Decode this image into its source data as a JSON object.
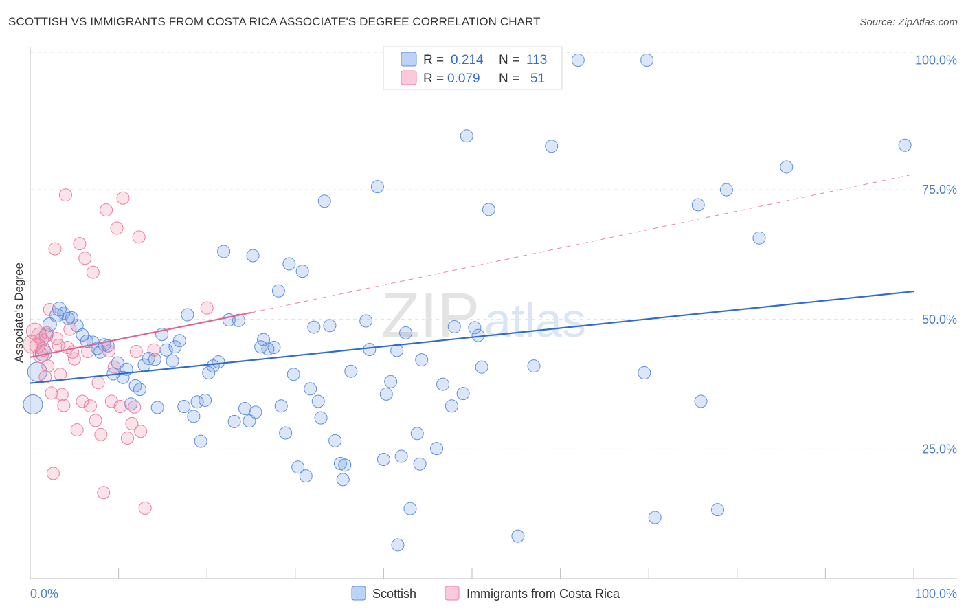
{
  "title": "SCOTTISH VS IMMIGRANTS FROM COSTA RICA ASSOCIATE'S DEGREE CORRELATION CHART",
  "source": "Source: ZipAtlas.com",
  "watermark": {
    "zip": "ZIP",
    "atlas": "atlas"
  },
  "legend_top": {
    "row1": {
      "r_label": "R =",
      "r_value": "0.214",
      "n_label": "N =",
      "n_value": "113"
    },
    "row2": {
      "r_label": "R =",
      "r_value": "0.079",
      "n_label": "N =",
      "n_value": "51"
    }
  },
  "legend_bottom": {
    "s1": "Scottish",
    "s2": "Immigrants from Costa Rica"
  },
  "chart_data": {
    "type": "scatter",
    "title": "SCOTTISH VS IMMIGRANTS FROM COSTA RICA ASSOCIATE'S DEGREE CORRELATION CHART",
    "xlabel": "",
    "ylabel": "Associate's Degree",
    "xlim": [
      0,
      100
    ],
    "ylim": [
      0,
      101
    ],
    "x_tick_labels": [
      "0.0%",
      "100.0%"
    ],
    "y_ticks": [
      25,
      50,
      75,
      100
    ],
    "y_tick_labels": [
      "25.0%",
      "50.0%",
      "75.0%",
      "100.0%"
    ],
    "grid": "horizontal-dashed",
    "colors": {
      "scottish": "#5b8fe0",
      "costa_rica": "#ee7ea0",
      "trend_blue": "#2f6bd2",
      "trend_pink": "#e2648f"
    },
    "series": [
      {
        "name": "Scottish",
        "R": 0.214,
        "N": 113,
        "trend": {
          "x0": 0,
          "y0": 37.7,
          "x1": 100,
          "y1": 55.4
        },
        "points": [
          [
            0.3,
            33.6,
            14
          ],
          [
            0.8,
            39.9,
            14
          ],
          [
            1.5,
            43.5,
            12
          ],
          [
            1.8,
            47.0,
            10
          ],
          [
            2.2,
            49.0,
            10
          ],
          [
            3.0,
            50.8,
            10
          ],
          [
            3.3,
            52.0,
            10
          ],
          [
            3.8,
            51.2,
            9
          ],
          [
            4.3,
            50.2,
            9
          ],
          [
            4.7,
            50.3,
            9
          ],
          [
            5.3,
            48.8,
            9
          ],
          [
            5.9,
            47.0,
            9
          ],
          [
            6.4,
            45.8,
            9
          ],
          [
            7.1,
            45.6,
            9
          ],
          [
            7.6,
            44.4,
            9
          ],
          [
            7.9,
            43.7,
            9
          ],
          [
            8.4,
            45.1,
            9
          ],
          [
            8.8,
            44.9,
            9
          ],
          [
            9.4,
            39.5,
            9
          ],
          [
            9.9,
            41.6,
            9
          ],
          [
            10.5,
            38.8,
            9
          ],
          [
            10.9,
            40.4,
            9
          ],
          [
            11.4,
            33.7,
            9
          ],
          [
            11.9,
            37.2,
            9
          ],
          [
            12.4,
            36.5,
            9
          ],
          [
            12.9,
            41.2,
            9
          ],
          [
            13.4,
            42.5,
            9
          ],
          [
            14.1,
            42.3,
            9
          ],
          [
            14.4,
            33.0,
            9
          ],
          [
            14.9,
            47.1,
            9
          ],
          [
            15.4,
            44.1,
            9
          ],
          [
            16.1,
            42.0,
            9
          ],
          [
            16.4,
            44.7,
            9
          ],
          [
            16.9,
            45.9,
            9
          ],
          [
            17.4,
            33.2,
            9
          ],
          [
            17.8,
            50.9,
            9
          ],
          [
            18.5,
            31.3,
            9
          ],
          [
            18.9,
            34.1,
            9
          ],
          [
            19.3,
            26.5,
            9
          ],
          [
            19.8,
            34.4,
            9
          ],
          [
            20.2,
            39.7,
            9
          ],
          [
            20.7,
            41.0,
            9
          ],
          [
            21.3,
            41.8,
            9
          ],
          [
            21.9,
            63.1,
            9
          ],
          [
            22.5,
            49.9,
            9
          ],
          [
            23.1,
            30.3,
            9
          ],
          [
            23.6,
            49.8,
            9
          ],
          [
            24.3,
            32.8,
            9
          ],
          [
            24.8,
            30.4,
            9
          ],
          [
            25.2,
            62.3,
            9
          ],
          [
            25.5,
            32.1,
            9
          ],
          [
            26.1,
            44.7,
            9
          ],
          [
            26.4,
            46.1,
            9
          ],
          [
            26.9,
            44.3,
            9
          ],
          [
            27.6,
            44.6,
            9
          ],
          [
            28.1,
            55.5,
            9
          ],
          [
            28.4,
            33.3,
            9
          ],
          [
            28.9,
            28.1,
            9
          ],
          [
            29.3,
            60.7,
            9
          ],
          [
            29.8,
            39.4,
            9
          ],
          [
            30.3,
            21.5,
            9
          ],
          [
            30.8,
            59.3,
            9
          ],
          [
            31.2,
            19.8,
            9
          ],
          [
            31.7,
            36.6,
            9
          ],
          [
            32.1,
            48.5,
            9
          ],
          [
            32.6,
            34.2,
            9
          ],
          [
            32.9,
            31.0,
            9
          ],
          [
            33.3,
            72.8,
            9
          ],
          [
            33.9,
            48.8,
            9
          ],
          [
            34.5,
            26.6,
            9
          ],
          [
            35.1,
            22.2,
            9
          ],
          [
            35.4,
            19.1,
            9
          ],
          [
            35.6,
            21.9,
            9
          ],
          [
            36.3,
            40.0,
            9
          ],
          [
            38.0,
            49.7,
            9
          ],
          [
            38.4,
            44.2,
            9
          ],
          [
            39.3,
            75.6,
            9
          ],
          [
            40.0,
            23.0,
            9
          ],
          [
            40.3,
            35.6,
            9
          ],
          [
            40.8,
            38.0,
            9
          ],
          [
            41.5,
            44.0,
            9
          ],
          [
            41.6,
            6.5,
            9
          ],
          [
            42.0,
            23.6,
            9
          ],
          [
            42.5,
            47.4,
            9
          ],
          [
            43.0,
            13.5,
            9
          ],
          [
            43.8,
            28.0,
            9
          ],
          [
            44.1,
            22.1,
            9
          ],
          [
            44.3,
            42.2,
            9
          ],
          [
            46.0,
            25.1,
            9
          ],
          [
            46.7,
            37.5,
            9
          ],
          [
            47.7,
            33.3,
            9
          ],
          [
            48.0,
            48.6,
            9
          ],
          [
            49.0,
            35.7,
            9
          ],
          [
            49.4,
            85.4,
            9
          ],
          [
            50.3,
            48.4,
            9
          ],
          [
            50.7,
            46.9,
            9
          ],
          [
            51.1,
            40.8,
            9
          ],
          [
            51.9,
            71.2,
            9
          ],
          [
            55.2,
            8.2,
            9
          ],
          [
            57.0,
            41.0,
            9
          ],
          [
            59.0,
            83.4,
            9
          ],
          [
            62.0,
            100.0,
            9
          ],
          [
            69.5,
            39.7,
            9
          ],
          [
            69.8,
            100.0,
            9
          ],
          [
            70.7,
            11.8,
            9
          ],
          [
            75.6,
            72.1,
            9
          ],
          [
            75.9,
            34.2,
            9
          ],
          [
            77.8,
            13.3,
            9
          ],
          [
            78.8,
            75.0,
            9
          ],
          [
            82.5,
            65.7,
            9
          ],
          [
            85.6,
            79.4,
            9
          ],
          [
            99.0,
            83.6,
            9
          ]
        ]
      },
      {
        "name": "Immigrants from Costa Rica",
        "R": 0.079,
        "N": 51,
        "trend": {
          "x0": 0,
          "y0": 42.7,
          "x1": 25,
          "y1": 51.3
        },
        "trend_dashed_to": {
          "x": 100,
          "y": 78.0
        },
        "points": [
          [
            0.2,
            45.2,
            13
          ],
          [
            0.5,
            47.7,
            12
          ],
          [
            0.8,
            44.9,
            11
          ],
          [
            1.0,
            46.9,
            11
          ],
          [
            1.2,
            43.1,
            11
          ],
          [
            1.3,
            46.1,
            10
          ],
          [
            1.5,
            44.2,
            10
          ],
          [
            1.7,
            38.9,
            9
          ],
          [
            1.9,
            47.4,
            9
          ],
          [
            2.0,
            41.0,
            9
          ],
          [
            2.2,
            51.9,
            9
          ],
          [
            2.4,
            35.8,
            9
          ],
          [
            2.6,
            20.3,
            9
          ],
          [
            2.8,
            63.6,
            9
          ],
          [
            3.0,
            46.3,
            9
          ],
          [
            3.2,
            45.0,
            9
          ],
          [
            3.4,
            39.4,
            9
          ],
          [
            3.6,
            35.5,
            9
          ],
          [
            3.8,
            33.4,
            9
          ],
          [
            4.0,
            74.0,
            9
          ],
          [
            4.2,
            44.6,
            9
          ],
          [
            4.5,
            48.1,
            9
          ],
          [
            4.8,
            43.7,
            9
          ],
          [
            5.0,
            42.4,
            9
          ],
          [
            5.3,
            28.7,
            9
          ],
          [
            5.6,
            64.6,
            9
          ],
          [
            5.9,
            34.2,
            9
          ],
          [
            6.2,
            61.8,
            9
          ],
          [
            6.5,
            43.8,
            9
          ],
          [
            6.8,
            33.3,
            9
          ],
          [
            7.1,
            59.1,
            9
          ],
          [
            7.4,
            30.5,
            9
          ],
          [
            7.7,
            37.8,
            9
          ],
          [
            8.0,
            27.8,
            9
          ],
          [
            8.3,
            16.6,
            9
          ],
          [
            8.6,
            71.1,
            9
          ],
          [
            8.9,
            43.9,
            9
          ],
          [
            9.2,
            34.2,
            9
          ],
          [
            9.5,
            40.8,
            9
          ],
          [
            9.8,
            67.6,
            9
          ],
          [
            10.2,
            33.2,
            9
          ],
          [
            10.5,
            73.4,
            9
          ],
          [
            11.0,
            27.1,
            9
          ],
          [
            11.5,
            29.9,
            9
          ],
          [
            12.0,
            43.8,
            9
          ],
          [
            12.3,
            65.9,
            9
          ],
          [
            12.5,
            28.4,
            9
          ],
          [
            13.0,
            13.6,
            9
          ],
          [
            14.0,
            44.1,
            9
          ],
          [
            20.0,
            52.2,
            9
          ],
          [
            11.8,
            33.1,
            9
          ]
        ]
      }
    ]
  }
}
